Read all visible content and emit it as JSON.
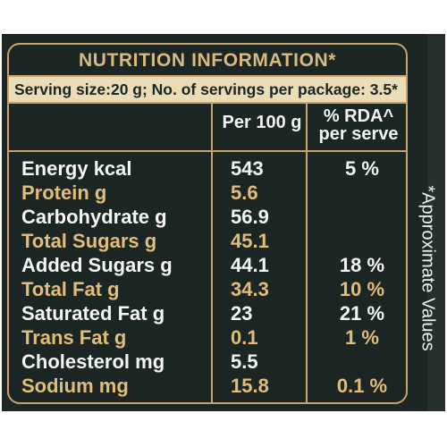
{
  "label": {
    "title": "NUTRITION INFORMATION*",
    "serving": "Serving size:20 g; No. of servings per package: 3.5*",
    "headers": {
      "per100": "Per 100 g",
      "rda_line1": "% RDA^",
      "rda_line2": "per serve"
    },
    "side_note": "*Approximate Values",
    "rows": [
      {
        "name": "Energy kcal",
        "per100": "543",
        "rda": "5 %"
      },
      {
        "name": "Protein g",
        "per100": "5.6",
        "rda": ""
      },
      {
        "name": "Carbohydrate g",
        "per100": "56.9",
        "rda": ""
      },
      {
        "name": "Total Sugars g",
        "per100": "45.1",
        "rda": ""
      },
      {
        "name": "Added Sugars g",
        "per100": "44.1",
        "rda": "18 %"
      },
      {
        "name": "Total Fat g",
        "per100": "34.3",
        "rda": "10 %"
      },
      {
        "name": "Saturated Fat g",
        "per100": "23",
        "rda": "21 %"
      },
      {
        "name": "Trans Fat g",
        "per100": "0.1",
        "rda": "1 %"
      },
      {
        "name": "Cholesterol mg",
        "per100": "5.5",
        "rda": ""
      },
      {
        "name": "Sodium mg",
        "per100": "15.8",
        "rda": "0.1 %"
      }
    ],
    "colors": {
      "background": "#1c2624",
      "accent_gold": "#c8a46c",
      "highlight_text": "#e2bd79",
      "band": "#eadcb7"
    }
  }
}
